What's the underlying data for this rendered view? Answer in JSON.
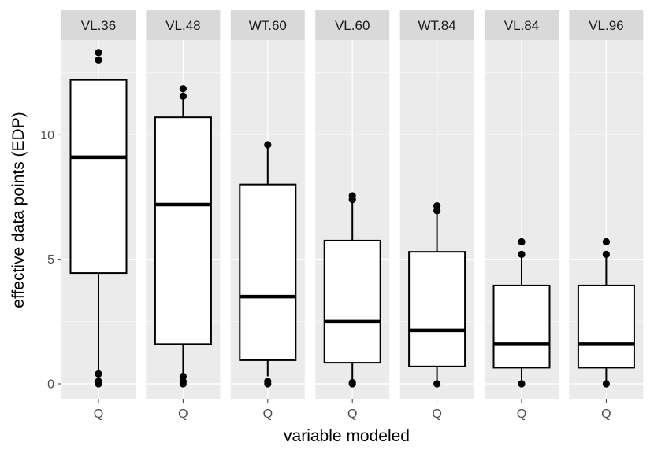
{
  "chart_data": {
    "type": "boxplot",
    "xlabel": "variable modeled",
    "ylabel": "effective data points (EDP)",
    "ylim": [
      -0.6,
      13.8
    ],
    "yticks": [
      0,
      5,
      10
    ],
    "panel_bg": "#ebebeb",
    "strip_bg": "#d9d9d9",
    "grid_color": "#ffffff",
    "panels": [
      {
        "label": "VL.36",
        "category": "Q",
        "whisker_low": 0.0,
        "q1": 4.45,
        "median": 9.1,
        "q3": 12.2,
        "whisker_high": 12.2,
        "outliers": [
          0.0,
          0.1,
          0.4,
          13.0,
          13.3
        ]
      },
      {
        "label": "VL.48",
        "category": "Q",
        "whisker_low": 0.35,
        "q1": 1.6,
        "median": 7.2,
        "q3": 10.7,
        "whisker_high": 11.5,
        "outliers": [
          0.0,
          0.1,
          0.3,
          11.55,
          11.85
        ]
      },
      {
        "label": "WT.60",
        "category": "Q",
        "whisker_low": 0.3,
        "q1": 0.95,
        "median": 3.5,
        "q3": 8.0,
        "whisker_high": 9.5,
        "outliers": [
          0.0,
          0.1,
          9.6
        ]
      },
      {
        "label": "VL.60",
        "category": "Q",
        "whisker_low": 0.1,
        "q1": 0.85,
        "median": 2.5,
        "q3": 5.75,
        "whisker_high": 7.4,
        "outliers": [
          0.0,
          0.05,
          7.4,
          7.55
        ]
      },
      {
        "label": "WT.84",
        "category": "Q",
        "whisker_low": 0.0,
        "q1": 0.7,
        "median": 2.15,
        "q3": 5.3,
        "whisker_high": 6.9,
        "outliers": [
          0.0,
          6.95,
          7.15
        ]
      },
      {
        "label": "VL.84",
        "category": "Q",
        "whisker_low": 0.0,
        "q1": 0.65,
        "median": 1.6,
        "q3": 3.95,
        "whisker_high": 5.2,
        "outliers": [
          0.0,
          5.2,
          5.7
        ]
      },
      {
        "label": "VL.96",
        "category": "Q",
        "whisker_low": 0.0,
        "q1": 0.65,
        "median": 1.6,
        "q3": 3.95,
        "whisker_high": 5.2,
        "outliers": [
          0.0,
          5.2,
          5.7
        ]
      }
    ]
  }
}
